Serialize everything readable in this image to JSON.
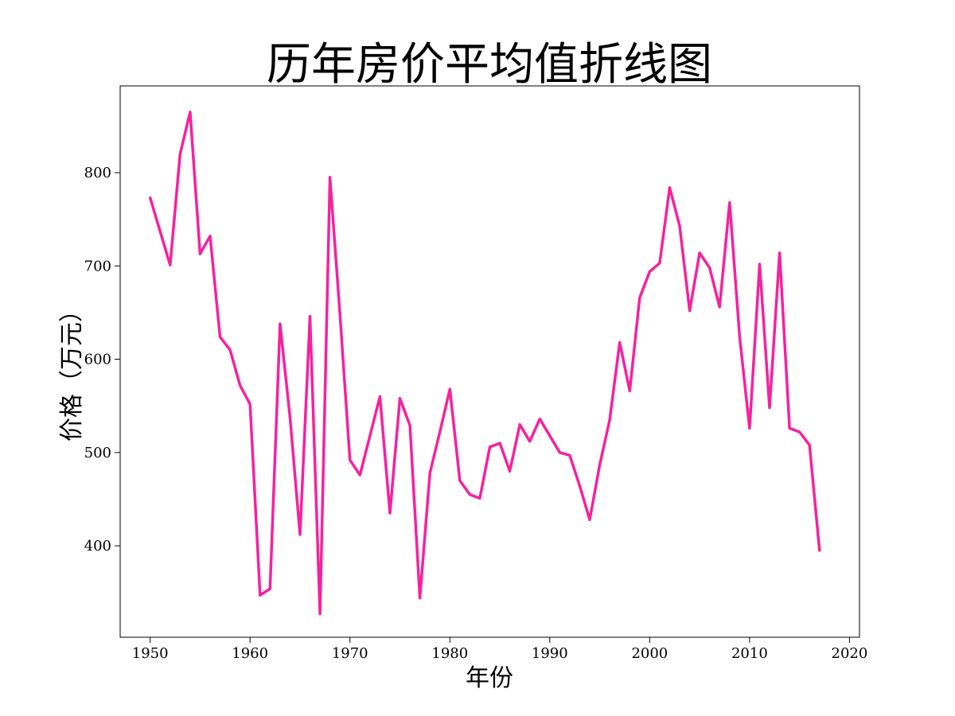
{
  "chart_data": {
    "type": "line",
    "title": "历年房价平均值折线图",
    "xlabel": "年份",
    "ylabel": "价格（万元）",
    "xlim": [
      1947,
      2021
    ],
    "ylim": [
      302,
      893
    ],
    "xticks": [
      1950,
      1960,
      1970,
      1980,
      1990,
      2000,
      2010,
      2020
    ],
    "yticks": [
      400,
      500,
      600,
      700,
      800
    ],
    "grid": false,
    "legend": "none",
    "series": [
      {
        "color": "#f5229e",
        "x": [
          1950,
          1951,
          1952,
          1953,
          1954,
          1955,
          1956,
          1957,
          1958,
          1959,
          1960,
          1961,
          1962,
          1963,
          1964,
          1965,
          1966,
          1967,
          1968,
          1969,
          1970,
          1971,
          1972,
          1973,
          1974,
          1975,
          1976,
          1977,
          1978,
          1979,
          1980,
          1981,
          1982,
          1983,
          1984,
          1985,
          1986,
          1987,
          1988,
          1989,
          1990,
          1991,
          1992,
          1993,
          1994,
          1995,
          1996,
          1997,
          1998,
          1999,
          2000,
          2001,
          2002,
          2003,
          2004,
          2005,
          2006,
          2007,
          2008,
          2009,
          2010,
          2011,
          2012,
          2013,
          2014,
          2015,
          2016,
          2017
        ],
        "values": [
          773,
          737,
          701,
          820,
          865,
          713,
          732,
          624,
          610,
          572,
          552,
          347,
          354,
          638,
          538,
          412,
          646,
          327,
          795,
          648,
          492,
          476,
          518,
          560,
          435,
          558,
          529,
          344,
          478,
          522,
          568,
          470,
          455,
          451,
          506,
          510,
          480,
          530,
          512,
          536,
          518,
          500,
          497,
          464,
          428,
          487,
          535,
          618,
          566,
          666,
          694,
          703,
          784,
          743,
          652,
          714,
          698,
          656,
          768,
          624,
          526,
          702,
          548,
          714,
          526,
          522,
          508,
          395
        ]
      }
    ]
  }
}
